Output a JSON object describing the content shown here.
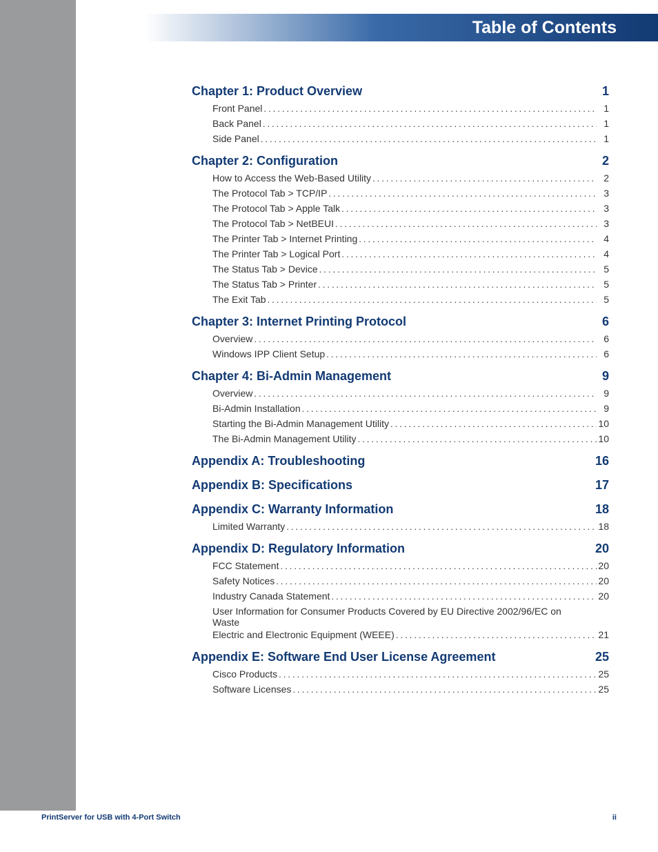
{
  "colors": {
    "header_gradient_start": "#ffffff",
    "header_gradient_mid": "#3a6aa8",
    "header_gradient_end": "#123a73",
    "sidebar_grey": "#999b9d",
    "chapter_text": "#123a73",
    "entry_text": "#333333",
    "footer_text": "#123a73",
    "background": "#ffffff"
  },
  "typography": {
    "header_title_size_pt": 19,
    "chapter_title_size_pt": 14,
    "entry_size_pt": 11,
    "footer_size_pt": 8,
    "font_family": "Myriad Pro / Arial Narrow"
  },
  "header": {
    "title": "Table of Contents"
  },
  "toc": [
    {
      "title": "Chapter 1: Product Overview",
      "page": "1",
      "entries": [
        {
          "label": "Front Panel",
          "page": "1"
        },
        {
          "label": "Back Panel",
          "page": "1"
        },
        {
          "label": "Side Panel",
          "page": "1"
        }
      ]
    },
    {
      "title": "Chapter 2: Configuration",
      "page": "2",
      "entries": [
        {
          "label": "How to Access the Web-Based Utility",
          "page": "2"
        },
        {
          "label": "The Protocol Tab > TCP/IP",
          "page": "3"
        },
        {
          "label": "The Protocol Tab > Apple Talk",
          "page": "3"
        },
        {
          "label": "The Protocol Tab > NetBEUI",
          "page": "3"
        },
        {
          "label": "The Printer Tab > Internet Printing",
          "page": "4"
        },
        {
          "label": "The Printer Tab > Logical Port",
          "page": "4"
        },
        {
          "label": "The Status Tab > Device",
          "page": "5"
        },
        {
          "label": "The Status Tab > Printer",
          "page": "5"
        },
        {
          "label": "The Exit Tab",
          "page": "5"
        }
      ]
    },
    {
      "title": "Chapter 3: Internet Printing Protocol",
      "page": "6",
      "entries": [
        {
          "label": "Overview",
          "page": "6"
        },
        {
          "label": "Windows IPP Client Setup",
          "page": "6"
        }
      ]
    },
    {
      "title": "Chapter 4: Bi-Admin Management",
      "page": "9",
      "entries": [
        {
          "label": "Overview",
          "page": "9"
        },
        {
          "label": "Bi-Admin Installation",
          "page": "9"
        },
        {
          "label": "Starting the Bi-Admin Management Utility",
          "page": "10"
        },
        {
          "label": "The Bi-Admin Management Utility",
          "page": "10"
        }
      ]
    },
    {
      "title": "Appendix A: Troubleshooting",
      "page": "16",
      "entries": []
    },
    {
      "title": "Appendix B: Specifications",
      "page": "17",
      "entries": []
    },
    {
      "title": "Appendix C: Warranty Information",
      "page": "18",
      "entries": [
        {
          "label": "Limited Warranty",
          "page": "18"
        }
      ]
    },
    {
      "title": "Appendix D: Regulatory Information",
      "page": "20",
      "entries": [
        {
          "label": "FCC Statement",
          "page": "20"
        },
        {
          "label": "Safety Notices",
          "page": "20"
        },
        {
          "label": "Industry Canada Statement",
          "page": "20"
        },
        {
          "label_line1": "User Information for Consumer Products Covered by EU Directive 2002/96/EC on Waste",
          "label_line2": "Electric and Electronic Equipment (WEEE)",
          "page": "21",
          "wrap": true
        }
      ]
    },
    {
      "title": "Appendix E: Software End User License Agreement",
      "page": "25",
      "entries": [
        {
          "label": "Cisco Products",
          "page": "25"
        },
        {
          "label": "Software Licenses",
          "page": "25"
        }
      ]
    }
  ],
  "footer": {
    "left": "PrintServer for USB with 4-Port Switch",
    "right": "ii"
  }
}
